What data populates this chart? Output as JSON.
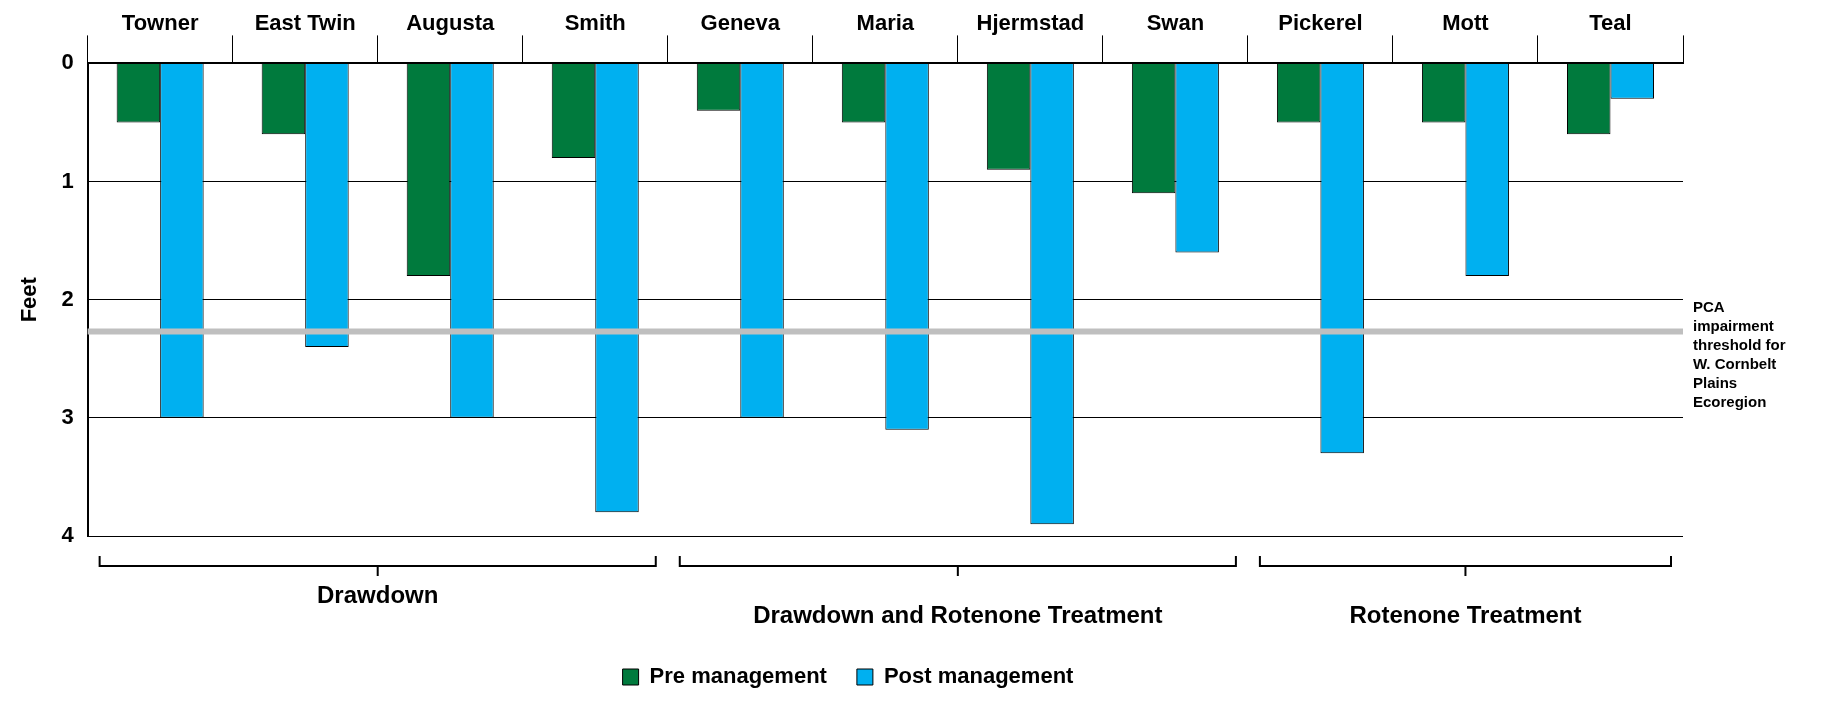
{
  "chart_data": {
    "type": "bar",
    "ylabel": "Feet",
    "categories": [
      "Towner",
      "East Twin",
      "Augusta",
      "Smith",
      "Geneva",
      "Maria",
      "Hjermstad",
      "Swan",
      "Pickerel",
      "Mott",
      "Teal"
    ],
    "series": [
      {
        "name": "Pre management",
        "color": "#007a3d",
        "values": [
          0.5,
          0.6,
          1.8,
          0.8,
          0.4,
          0.5,
          0.9,
          1.1,
          0.5,
          0.5,
          0.6
        ]
      },
      {
        "name": "Post management",
        "color": "#00b0f0",
        "values": [
          3.0,
          2.4,
          3.0,
          3.8,
          3.0,
          3.1,
          3.9,
          1.6,
          3.3,
          1.8,
          0.3
        ]
      }
    ],
    "ylim": [
      4,
      0
    ],
    "yticks": [
      0,
      1,
      2,
      3,
      4
    ],
    "grid": "y",
    "legend": "bottom",
    "ref_lines": [
      {
        "axis": "y",
        "value": 2.27,
        "label": "PCA impairment threshold for W. Cornbelt Plains Ecoregion",
        "color": "#bfbfbf"
      }
    ],
    "annotations": [
      "Drawdown",
      "Drawdown and Rotenone Treatment",
      "Rotenone Treatment"
    ]
  }
}
